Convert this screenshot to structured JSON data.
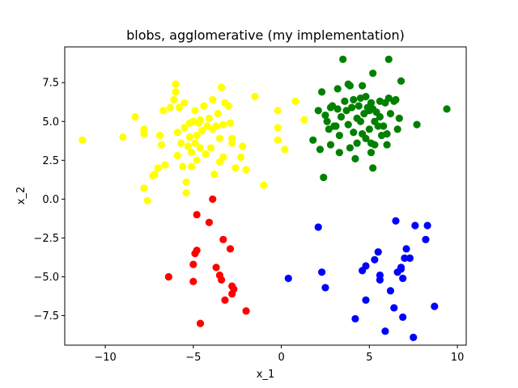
{
  "chart_data": {
    "type": "scatter",
    "title": "blobs, agglomerative (my implementation)",
    "xlabel": "x_1",
    "ylabel": "x_2",
    "xlim": [
      -12.3,
      10.5
    ],
    "ylim": [
      -9.4,
      9.8
    ],
    "xticks": [
      -10,
      -5,
      0,
      5,
      10
    ],
    "xtick_labels": [
      "−10",
      "−5",
      "0",
      "5",
      "10"
    ],
    "yticks": [
      -7.5,
      -5.0,
      -2.5,
      0.0,
      2.5,
      5.0,
      7.5
    ],
    "ytick_labels": [
      "−7.5",
      "−5.0",
      "−2.5",
      "0.0",
      "2.5",
      "5.0",
      "7.5"
    ],
    "grid": false,
    "legend": "none",
    "series": [
      {
        "color": "#ffff00",
        "points": [
          [
            -11.3,
            3.8
          ],
          [
            -9.0,
            4.0
          ],
          [
            -8.3,
            5.3
          ],
          [
            -7.8,
            4.2
          ],
          [
            -7.8,
            4.5
          ],
          [
            -7.8,
            0.7
          ],
          [
            -7.6,
            -0.1
          ],
          [
            -7.3,
            1.5
          ],
          [
            -7.2,
            1.6
          ],
          [
            -7.0,
            2.0
          ],
          [
            -6.9,
            4.1
          ],
          [
            -6.8,
            3.5
          ],
          [
            -6.7,
            5.7
          ],
          [
            -6.6,
            2.2
          ],
          [
            -6.3,
            5.9
          ],
          [
            -6.1,
            6.4
          ],
          [
            -6.0,
            7.4
          ],
          [
            -6.0,
            6.9
          ],
          [
            -5.9,
            4.3
          ],
          [
            -5.9,
            2.8
          ],
          [
            -5.8,
            5.9
          ],
          [
            -5.7,
            3.6
          ],
          [
            -5.6,
            2.1
          ],
          [
            -5.5,
            4.6
          ],
          [
            -5.5,
            6.2
          ],
          [
            -5.4,
            1.1
          ],
          [
            -5.4,
            0.4
          ],
          [
            -5.3,
            3.4
          ],
          [
            -5.2,
            4.9
          ],
          [
            -5.2,
            4.0
          ],
          [
            -5.1,
            3.0
          ],
          [
            -5.1,
            2.1
          ],
          [
            -5.0,
            5.0
          ],
          [
            -4.9,
            3.6
          ],
          [
            -4.9,
            5.7
          ],
          [
            -4.8,
            4.1
          ],
          [
            -4.8,
            2.5
          ],
          [
            -4.7,
            4.9
          ],
          [
            -4.6,
            5.1
          ],
          [
            -4.6,
            3.3
          ],
          [
            -4.5,
            4.4
          ],
          [
            -4.4,
            6.0
          ],
          [
            -4.3,
            2.9
          ],
          [
            -4.2,
            4.7
          ],
          [
            -4.1,
            5.2
          ],
          [
            -4.0,
            3.3
          ],
          [
            -3.9,
            6.4
          ],
          [
            -3.9,
            4.5
          ],
          [
            -3.8,
            1.6
          ],
          [
            -3.7,
            4.7
          ],
          [
            -3.6,
            5.5
          ],
          [
            -3.5,
            2.4
          ],
          [
            -3.5,
            3.9
          ],
          [
            -3.4,
            7.2
          ],
          [
            -3.3,
            4.8
          ],
          [
            -3.3,
            2.7
          ],
          [
            -3.2,
            6.2
          ],
          [
            -3.0,
            6.0
          ],
          [
            -2.9,
            4.9
          ],
          [
            -2.8,
            3.6
          ],
          [
            -2.8,
            3.9
          ],
          [
            -2.6,
            2.0
          ],
          [
            -2.3,
            2.7
          ],
          [
            -2.2,
            3.4
          ],
          [
            -2.0,
            1.9
          ],
          [
            -1.5,
            6.6
          ],
          [
            -1.0,
            0.9
          ],
          [
            -0.2,
            3.8
          ],
          [
            -0.2,
            5.7
          ],
          [
            -0.2,
            4.6
          ],
          [
            0.2,
            3.2
          ],
          [
            0.8,
            6.3
          ],
          [
            1.3,
            5.1
          ]
        ]
      },
      {
        "color": "#008000",
        "points": [
          [
            1.8,
            3.8
          ],
          [
            2.1,
            5.7
          ],
          [
            2.2,
            3.2
          ],
          [
            2.3,
            6.9
          ],
          [
            2.4,
            1.4
          ],
          [
            2.5,
            5.4
          ],
          [
            2.6,
            5.0
          ],
          [
            2.7,
            4.5
          ],
          [
            2.8,
            5.9
          ],
          [
            2.8,
            3.5
          ],
          [
            2.9,
            6.0
          ],
          [
            3.0,
            4.7
          ],
          [
            3.1,
            4.7
          ],
          [
            3.2,
            5.8
          ],
          [
            3.2,
            7.1
          ],
          [
            3.3,
            4.1
          ],
          [
            3.3,
            3.0
          ],
          [
            3.4,
            5.3
          ],
          [
            3.5,
            9.0
          ],
          [
            3.6,
            6.3
          ],
          [
            3.7,
            5.7
          ],
          [
            3.8,
            4.8
          ],
          [
            3.8,
            7.4
          ],
          [
            3.9,
            3.3
          ],
          [
            3.9,
            7.3
          ],
          [
            4.0,
            5.9
          ],
          [
            4.1,
            4.3
          ],
          [
            4.1,
            6.4
          ],
          [
            4.2,
            2.6
          ],
          [
            4.3,
            5.2
          ],
          [
            4.3,
            3.6
          ],
          [
            4.4,
            6.0
          ],
          [
            4.5,
            5.0
          ],
          [
            4.5,
            6.5
          ],
          [
            4.6,
            4.2
          ],
          [
            4.6,
            7.3
          ],
          [
            4.7,
            5.5
          ],
          [
            4.8,
            6.6
          ],
          [
            4.8,
            3.9
          ],
          [
            4.9,
            5.9
          ],
          [
            5.0,
            5.7
          ],
          [
            5.0,
            4.5
          ],
          [
            5.1,
            6.2
          ],
          [
            5.1,
            3.6
          ],
          [
            5.1,
            3.0
          ],
          [
            5.2,
            5.8
          ],
          [
            5.2,
            8.1
          ],
          [
            5.2,
            2.0
          ],
          [
            5.3,
            5.0
          ],
          [
            5.3,
            3.5
          ],
          [
            5.4,
            5.6
          ],
          [
            5.5,
            4.7
          ],
          [
            5.6,
            6.3
          ],
          [
            5.6,
            5.3
          ],
          [
            5.7,
            4.1
          ],
          [
            5.8,
            4.7
          ],
          [
            5.9,
            6.2
          ],
          [
            6.0,
            4.2
          ],
          [
            6.0,
            3.5
          ],
          [
            6.1,
            6.5
          ],
          [
            6.1,
            9.0
          ],
          [
            6.2,
            5.5
          ],
          [
            6.4,
            6.3
          ],
          [
            6.5,
            6.4
          ],
          [
            6.6,
            4.5
          ],
          [
            6.7,
            5.2
          ],
          [
            6.8,
            7.6
          ],
          [
            7.7,
            4.8
          ],
          [
            9.4,
            5.8
          ]
        ]
      },
      {
        "color": "#ff0000",
        "points": [
          [
            -6.4,
            -5.0
          ],
          [
            -5.0,
            -4.2
          ],
          [
            -5.0,
            -5.3
          ],
          [
            -4.9,
            -3.5
          ],
          [
            -4.8,
            -1.0
          ],
          [
            -4.8,
            -3.3
          ],
          [
            -4.6,
            -8.0
          ],
          [
            -4.1,
            -1.5
          ],
          [
            -3.9,
            0.0
          ],
          [
            -3.7,
            -4.4
          ],
          [
            -3.5,
            -4.9
          ],
          [
            -3.4,
            -5.2
          ],
          [
            -3.3,
            -2.6
          ],
          [
            -3.2,
            -6.5
          ],
          [
            -2.9,
            -3.2
          ],
          [
            -2.8,
            -5.6
          ],
          [
            -2.8,
            -6.1
          ],
          [
            -2.7,
            -5.8
          ],
          [
            -2.0,
            -7.2
          ]
        ]
      },
      {
        "color": "#0000ff",
        "points": [
          [
            0.4,
            -5.1
          ],
          [
            2.1,
            -1.8
          ],
          [
            2.3,
            -4.7
          ],
          [
            2.5,
            -5.7
          ],
          [
            4.2,
            -7.7
          ],
          [
            4.6,
            -4.6
          ],
          [
            4.8,
            -4.3
          ],
          [
            4.8,
            -6.5
          ],
          [
            5.3,
            -3.9
          ],
          [
            5.5,
            -3.4
          ],
          [
            5.6,
            -4.9
          ],
          [
            5.6,
            -5.2
          ],
          [
            5.9,
            -8.5
          ],
          [
            6.2,
            -5.9
          ],
          [
            6.4,
            -7.0
          ],
          [
            6.5,
            -1.4
          ],
          [
            6.6,
            -4.7
          ],
          [
            6.8,
            -4.4
          ],
          [
            6.8,
            -4.5
          ],
          [
            6.9,
            -5.1
          ],
          [
            6.9,
            -7.6
          ],
          [
            7.0,
            -3.8
          ],
          [
            7.1,
            -3.2
          ],
          [
            7.3,
            -3.8
          ],
          [
            7.5,
            -8.9
          ],
          [
            7.6,
            -1.7
          ],
          [
            8.2,
            -2.6
          ],
          [
            8.3,
            -1.7
          ],
          [
            8.7,
            -6.9
          ]
        ]
      }
    ]
  }
}
